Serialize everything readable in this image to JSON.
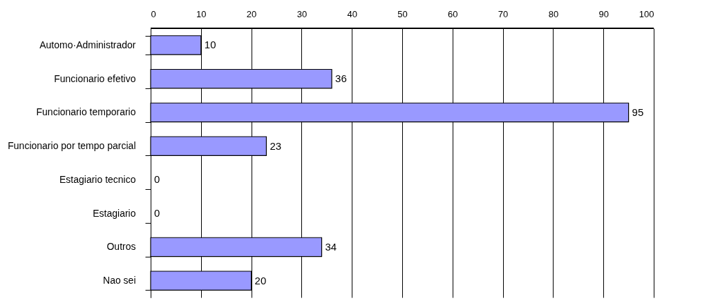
{
  "chart_data": {
    "type": "bar",
    "orientation": "horizontal",
    "categories": [
      "Automo·Administrador",
      "Funcionario efetivo",
      "Funcionario temporario",
      "Funcionario por tempo parcial",
      "Estagiario tecnico",
      "Estagiario",
      "Outros",
      "Nao sei"
    ],
    "values": [
      10,
      36,
      95,
      23,
      0,
      0,
      34,
      20
    ],
    "color": "#9999ff",
    "xlim": [
      0,
      100
    ],
    "xticks": [
      0,
      10,
      20,
      30,
      40,
      50,
      60,
      70,
      80,
      90,
      100
    ],
    "grid": "x",
    "data_labels": true
  }
}
